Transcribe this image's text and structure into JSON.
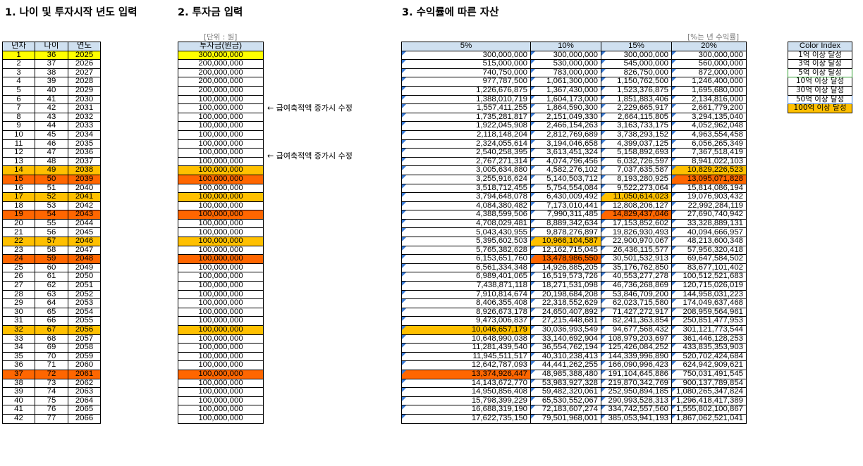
{
  "sections": {
    "s1": "1. 나이 및 투자시작 년도 입력",
    "s2": "2. 투자금 입력",
    "s3": "3. 수익률에 따른 자산"
  },
  "units": {
    "won": "[단위 : 원]",
    "rate": "[%는 년 수익률]"
  },
  "age_table": {
    "headers": [
      "년차",
      "나이",
      "연도"
    ],
    "rows": [
      [
        "1",
        "36",
        "2025"
      ],
      [
        "2",
        "37",
        "2026"
      ],
      [
        "3",
        "38",
        "2027"
      ],
      [
        "4",
        "39",
        "2028"
      ],
      [
        "5",
        "40",
        "2029"
      ],
      [
        "6",
        "41",
        "2030"
      ],
      [
        "7",
        "42",
        "2031"
      ],
      [
        "8",
        "43",
        "2032"
      ],
      [
        "9",
        "44",
        "2033"
      ],
      [
        "10",
        "45",
        "2034"
      ],
      [
        "11",
        "46",
        "2035"
      ],
      [
        "12",
        "47",
        "2036"
      ],
      [
        "13",
        "48",
        "2037"
      ],
      [
        "14",
        "49",
        "2038"
      ],
      [
        "15",
        "50",
        "2039"
      ],
      [
        "16",
        "51",
        "2040"
      ],
      [
        "17",
        "52",
        "2041"
      ],
      [
        "18",
        "53",
        "2042"
      ],
      [
        "19",
        "54",
        "2043"
      ],
      [
        "20",
        "55",
        "2044"
      ],
      [
        "21",
        "56",
        "2045"
      ],
      [
        "22",
        "57",
        "2046"
      ],
      [
        "23",
        "58",
        "2047"
      ],
      [
        "24",
        "59",
        "2048"
      ],
      [
        "25",
        "60",
        "2049"
      ],
      [
        "26",
        "61",
        "2050"
      ],
      [
        "27",
        "62",
        "2051"
      ],
      [
        "28",
        "63",
        "2052"
      ],
      [
        "29",
        "64",
        "2053"
      ],
      [
        "30",
        "65",
        "2054"
      ],
      [
        "31",
        "66",
        "2055"
      ],
      [
        "32",
        "67",
        "2056"
      ],
      [
        "33",
        "68",
        "2057"
      ],
      [
        "34",
        "69",
        "2058"
      ],
      [
        "35",
        "70",
        "2059"
      ],
      [
        "36",
        "71",
        "2060"
      ],
      [
        "37",
        "72",
        "2061"
      ],
      [
        "38",
        "73",
        "2062"
      ],
      [
        "39",
        "74",
        "2063"
      ],
      [
        "40",
        "75",
        "2064"
      ],
      [
        "41",
        "76",
        "2065"
      ],
      [
        "42",
        "77",
        "2066"
      ]
    ]
  },
  "invest_table": {
    "header": "투자금(원금)",
    "rows": [
      "300,000,000",
      "200,000,000",
      "200,000,000",
      "200,000,000",
      "200,000,000",
      "100,000,000",
      "100,000,000",
      "100,000,000",
      "100,000,000",
      "100,000,000",
      "100,000,000",
      "100,000,000",
      "100,000,000",
      "100,000,000",
      "100,000,000",
      "100,000,000",
      "100,000,000",
      "100,000,000",
      "100,000,000",
      "100,000,000",
      "100,000,000",
      "100,000,000",
      "100,000,000",
      "100,000,000",
      "100,000,000",
      "100,000,000",
      "100,000,000",
      "100,000,000",
      "100,000,000",
      "100,000,000",
      "100,000,000",
      "100,000,000",
      "100,000,000",
      "100,000,000",
      "100,000,000",
      "100,000,000",
      "100,000,000",
      "100,000,000",
      "100,000,000",
      "100,000,000",
      "100,000,000",
      "100,000,000"
    ]
  },
  "notes": {
    "n1": "← 급여축적액 증가시 수정",
    "n2": "← 급여축적액 증가시 수정"
  },
  "return_table": {
    "headers": [
      "5%",
      "10%",
      "15%",
      "20%"
    ],
    "rows": [
      [
        "300,000,000",
        "300,000,000",
        "300,000,000",
        "300,000,000"
      ],
      [
        "515,000,000",
        "530,000,000",
        "545,000,000",
        "560,000,000"
      ],
      [
        "740,750,000",
        "783,000,000",
        "826,750,000",
        "872,000,000"
      ],
      [
        "977,787,500",
        "1,061,300,000",
        "1,150,762,500",
        "1,246,400,000"
      ],
      [
        "1,226,676,875",
        "1,367,430,000",
        "1,523,376,875",
        "1,695,680,000"
      ],
      [
        "1,388,010,719",
        "1,604,173,000",
        "1,851,883,406",
        "2,134,816,000"
      ],
      [
        "1,557,411,255",
        "1,864,590,300",
        "2,229,665,917",
        "2,661,779,200"
      ],
      [
        "1,735,281,817",
        "2,151,049,330",
        "2,664,115,805",
        "3,294,135,040"
      ],
      [
        "1,922,045,908",
        "2,466,154,263",
        "3,163,733,175",
        "4,052,962,048"
      ],
      [
        "2,118,148,204",
        "2,812,769,689",
        "3,738,293,152",
        "4,963,554,458"
      ],
      [
        "2,324,055,614",
        "3,194,046,658",
        "4,399,037,125",
        "6,056,265,349"
      ],
      [
        "2,540,258,395",
        "3,613,451,324",
        "5,158,892,693",
        "7,367,518,419"
      ],
      [
        "2,767,271,314",
        "4,074,796,456",
        "6,032,726,597",
        "8,941,022,103"
      ],
      [
        "3,005,634,880",
        "4,582,276,102",
        "7,037,635,587",
        "10,829,226,523"
      ],
      [
        "3,255,916,624",
        "5,140,503,712",
        "8,193,280,925",
        "13,095,071,828"
      ],
      [
        "3,518,712,455",
        "5,754,554,084",
        "9,522,273,064",
        "15,814,086,194"
      ],
      [
        "3,794,648,078",
        "6,430,009,492",
        "11,050,614,023",
        "19,076,903,432"
      ],
      [
        "4,084,380,482",
        "7,173,010,441",
        "12,808,206,127",
        "22,992,284,119"
      ],
      [
        "4,388,599,506",
        "7,990,311,485",
        "14,829,437,046",
        "27,690,740,942"
      ],
      [
        "4,708,029,481",
        "8,889,342,634",
        "17,153,852,602",
        "33,328,889,131"
      ],
      [
        "5,043,430,955",
        "9,878,276,897",
        "19,826,930,493",
        "40,094,666,957"
      ],
      [
        "5,395,602,503",
        "10,966,104,587",
        "22,900,970,067",
        "48,213,600,348"
      ],
      [
        "5,765,382,628",
        "12,162,715,045",
        "26,436,115,577",
        "57,956,320,418"
      ],
      [
        "6,153,651,760",
        "13,478,986,550",
        "30,501,532,913",
        "69,647,584,502"
      ],
      [
        "6,561,334,348",
        "14,926,885,205",
        "35,176,762,850",
        "83,677,101,402"
      ],
      [
        "6,989,401,065",
        "16,519,573,726",
        "40,553,277,278",
        "100,512,521,683"
      ],
      [
        "7,438,871,118",
        "18,271,531,098",
        "46,736,268,869",
        "120,715,026,019"
      ],
      [
        "7,910,814,674",
        "20,198,684,208",
        "53,846,709,200",
        "144,958,031,223"
      ],
      [
        "8,406,355,408",
        "22,318,552,629",
        "62,023,715,580",
        "174,049,637,468"
      ],
      [
        "8,926,673,178",
        "24,650,407,892",
        "71,427,272,917",
        "208,959,564,961"
      ],
      [
        "9,473,006,837",
        "27,215,448,681",
        "82,241,363,854",
        "250,851,477,953"
      ],
      [
        "10,046,657,179",
        "30,036,993,549",
        "94,677,568,432",
        "301,121,773,544"
      ],
      [
        "10,648,990,038",
        "33,140,692,904",
        "108,979,203,697",
        "361,446,128,253"
      ],
      [
        "11,281,439,540",
        "36,554,762,194",
        "125,426,084,252",
        "433,835,353,903"
      ],
      [
        "11,945,511,517",
        "40,310,238,413",
        "144,339,996,890",
        "520,702,424,684"
      ],
      [
        "12,642,787,093",
        "44,441,262,255",
        "166,090,996,423",
        "624,942,909,621"
      ],
      [
        "13,374,926,447",
        "48,985,388,480",
        "191,104,645,886",
        "750,031,491,545"
      ],
      [
        "14,143,672,770",
        "53,983,927,328",
        "219,870,342,769",
        "900,137,789,854"
      ],
      [
        "14,950,856,408",
        "59,482,320,061",
        "252,950,894,185",
        "1,080,265,347,824"
      ],
      [
        "15,798,399,229",
        "65,530,552,067",
        "290,993,528,313",
        "1,296,418,417,389"
      ],
      [
        "16,688,319,190",
        "72,183,607,274",
        "334,742,557,560",
        "1,555,802,100,867"
      ],
      [
        "17,622,735,150",
        "79,501,968,001",
        "385,053,941,193",
        "1,867,062,521,041"
      ]
    ]
  },
  "legend": {
    "title": "Color Index",
    "items": [
      {
        "label": "1억 이상 달성",
        "color": "#ffffff",
        "border": "#000000"
      },
      {
        "label": "3억 이상 달성",
        "color": "#ffffff",
        "border": "#000000"
      },
      {
        "label": "5억 이상 달성",
        "color": "#ffffff",
        "border": "#2e9e2e"
      },
      {
        "label": "10억 이상 달성",
        "color": "#ffffff",
        "border": "#000000"
      },
      {
        "label": "30억 이상 달성",
        "color": "#ffffff",
        "border": "#000000"
      },
      {
        "label": "50억 이상 달성",
        "color": "#ffffff",
        "border": "#3a7bd5"
      },
      {
        "label": "100억 이상 달성",
        "color": "#ffc000",
        "border": "#000000"
      }
    ]
  },
  "highlights": {
    "yellow_rows": [
      0
    ],
    "orange_rows": [
      13,
      16,
      21,
      31
    ],
    "red_rows": [
      14,
      18,
      23,
      36
    ],
    "return_orange": [
      [
        16,
        2
      ],
      [
        13,
        3
      ],
      [
        21,
        1
      ],
      [
        31,
        0
      ]
    ],
    "return_red": [
      [
        18,
        2
      ],
      [
        14,
        3
      ],
      [
        23,
        1
      ],
      [
        36,
        0
      ]
    ]
  }
}
